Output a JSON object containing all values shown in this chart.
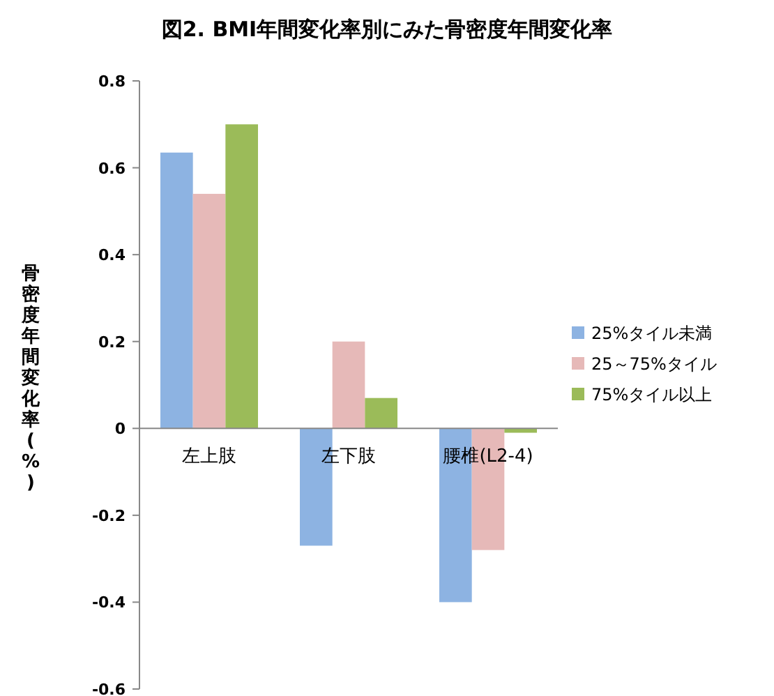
{
  "chart_data": {
    "type": "bar",
    "title": "図2. BMI年間変化率別にみた骨密度年間変化率",
    "ylabel": "骨密度年間変化率(%)",
    "categories": [
      "左上肢",
      "左下肢",
      "腰椎(L2-4)"
    ],
    "series": [
      {
        "name": "25%タイル未満",
        "color": "#8db3e2",
        "values": [
          0.635,
          -0.27,
          -0.4
        ]
      },
      {
        "name": "25～75%タイル",
        "color": "#e6b9b8",
        "values": [
          0.54,
          0.2,
          -0.28
        ]
      },
      {
        "name": "75%タイル以上",
        "color": "#9bbb59",
        "values": [
          0.7,
          0.07,
          -0.01
        ]
      }
    ],
    "ylim": [
      -0.6,
      0.8
    ],
    "yticks": [
      -0.6,
      -0.4,
      -0.2,
      0,
      0.2,
      0.4,
      0.6,
      0.8
    ],
    "legend": "right"
  }
}
